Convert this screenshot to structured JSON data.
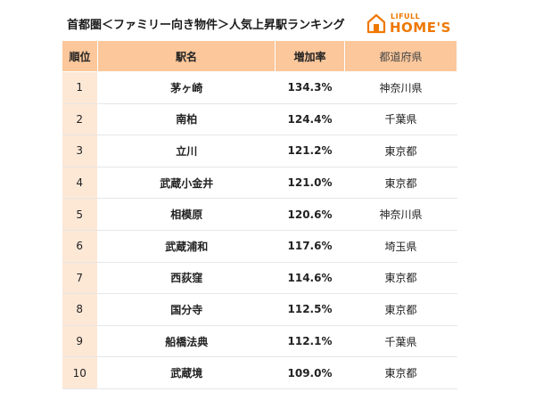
{
  "header": {
    "title": "首都圏＜ファミリー向き物件＞人気上昇駅ランキング",
    "logo_small": "LIFULL",
    "logo_big": "HOME'S"
  },
  "table": {
    "columns": [
      "順位",
      "駅名",
      "増加率",
      "都道府県"
    ],
    "rows": [
      {
        "rank": "1",
        "station": "茅ヶ崎",
        "rate": "134.3%",
        "prefecture": "神奈川県"
      },
      {
        "rank": "2",
        "station": "南柏",
        "rate": "124.4%",
        "prefecture": "千葉県"
      },
      {
        "rank": "3",
        "station": "立川",
        "rate": "121.2%",
        "prefecture": "東京都"
      },
      {
        "rank": "4",
        "station": "武蔵小金井",
        "rate": "121.0%",
        "prefecture": "東京都"
      },
      {
        "rank": "5",
        "station": "相模原",
        "rate": "120.6%",
        "prefecture": "神奈川県"
      },
      {
        "rank": "6",
        "station": "武蔵浦和",
        "rate": "117.6%",
        "prefecture": "埼玉県"
      },
      {
        "rank": "7",
        "station": "西荻窪",
        "rate": "114.6%",
        "prefecture": "東京都"
      },
      {
        "rank": "8",
        "station": "国分寺",
        "rate": "112.5%",
        "prefecture": "東京都"
      },
      {
        "rank": "9",
        "station": "船橋法典",
        "rate": "112.1%",
        "prefecture": "千葉県"
      },
      {
        "rank": "10",
        "station": "武蔵境",
        "rate": "109.0%",
        "prefecture": "東京都"
      }
    ]
  },
  "colors": {
    "header_bg": "#fbc79b",
    "rank_cell_bg": "#fde8d6",
    "brand_orange": "#ee7800"
  }
}
